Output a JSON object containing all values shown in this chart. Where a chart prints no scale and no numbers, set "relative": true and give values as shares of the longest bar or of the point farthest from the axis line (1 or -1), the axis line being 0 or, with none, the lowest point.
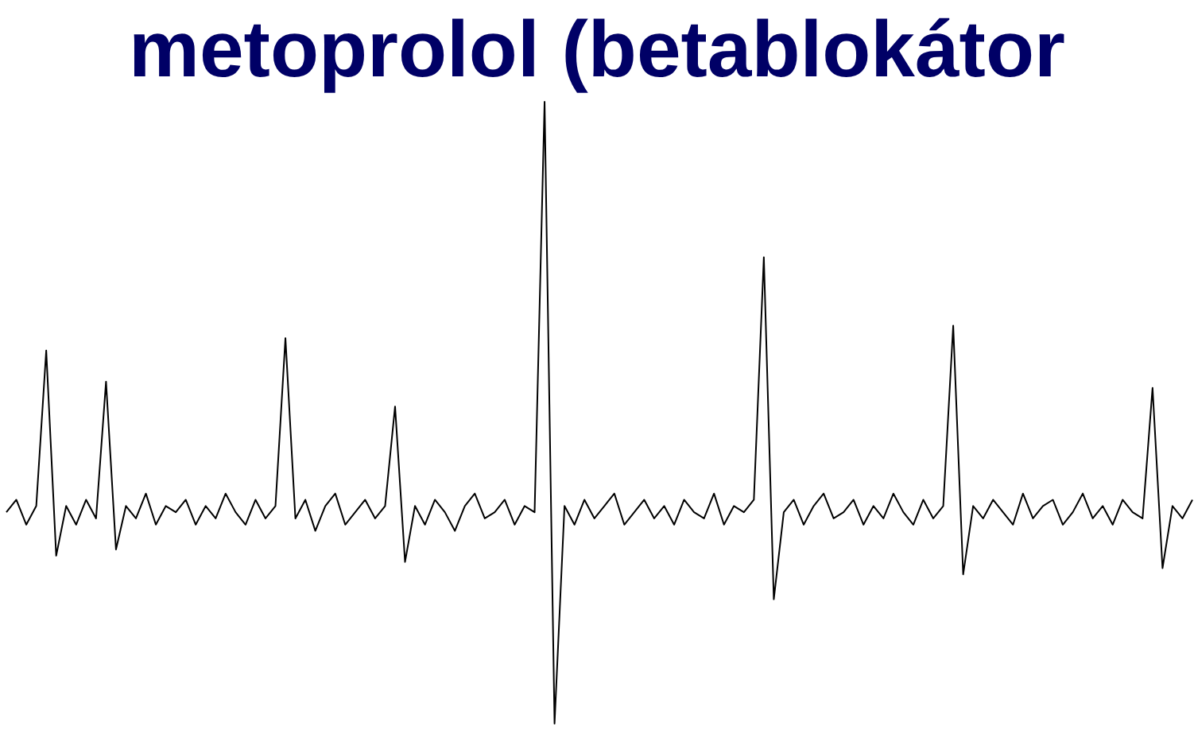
{
  "chart_data": {
    "type": "line",
    "title": "metoprolol (betablokátor",
    "relative": true,
    "color": "#000000",
    "categories": [
      null,
      null,
      null,
      null,
      null,
      null,
      null,
      null,
      null,
      null,
      null,
      null,
      null,
      null,
      null,
      null,
      null,
      null,
      null,
      null,
      null,
      null,
      null,
      null,
      null,
      null,
      null,
      null,
      null,
      null,
      null,
      null,
      null,
      null,
      null,
      null,
      null,
      null,
      null,
      null,
      null,
      null,
      null,
      null,
      null,
      null,
      null,
      null,
      null,
      null,
      null,
      null,
      null,
      null,
      null,
      null,
      null,
      null,
      null,
      null,
      null,
      null,
      null,
      null,
      null,
      null,
      null,
      null,
      null,
      null,
      null,
      null,
      null,
      null,
      null,
      null,
      null,
      null,
      null,
      null,
      null,
      null,
      null,
      null,
      null,
      null,
      null,
      null,
      null,
      null,
      null,
      null,
      null,
      null,
      null,
      null,
      null,
      null,
      null,
      null,
      null,
      null,
      null,
      null,
      null,
      null,
      null,
      null,
      null,
      null,
      null,
      null,
      null,
      null,
      null,
      null,
      null,
      null,
      null,
      null
    ],
    "values": [
      0.34,
      0.36,
      0.32,
      0.35,
      0.6,
      0.27,
      0.35,
      0.32,
      0.36,
      0.33,
      0.55,
      0.28,
      0.35,
      0.33,
      0.37,
      0.32,
      0.35,
      0.34,
      0.36,
      0.32,
      0.35,
      0.33,
      0.37,
      0.34,
      0.32,
      0.36,
      0.33,
      0.35,
      0.62,
      0.33,
      0.36,
      0.31,
      0.35,
      0.37,
      0.32,
      0.34,
      0.36,
      0.33,
      0.35,
      0.51,
      0.26,
      0.35,
      0.32,
      0.36,
      0.34,
      0.31,
      0.35,
      0.37,
      0.33,
      0.34,
      0.36,
      0.32,
      0.35,
      0.34,
      1,
      0,
      0.35,
      0.32,
      0.36,
      0.33,
      0.35,
      0.37,
      0.32,
      0.34,
      0.36,
      0.33,
      0.35,
      0.32,
      0.36,
      0.34,
      0.33,
      0.37,
      0.32,
      0.35,
      0.34,
      0.36,
      0.75,
      0.2,
      0.34,
      0.36,
      0.32,
      0.35,
      0.37,
      0.33,
      0.34,
      0.36,
      0.32,
      0.35,
      0.33,
      0.37,
      0.34,
      0.32,
      0.36,
      0.33,
      0.35,
      0.64,
      0.24,
      0.35,
      0.33,
      0.36,
      0.34,
      0.32,
      0.37,
      0.33,
      0.35,
      0.36,
      0.32,
      0.34,
      0.37,
      0.33,
      0.35,
      0.32,
      0.36,
      0.34,
      0.33,
      0.54,
      0.25,
      0.35,
      0.33,
      0.36
    ]
  }
}
